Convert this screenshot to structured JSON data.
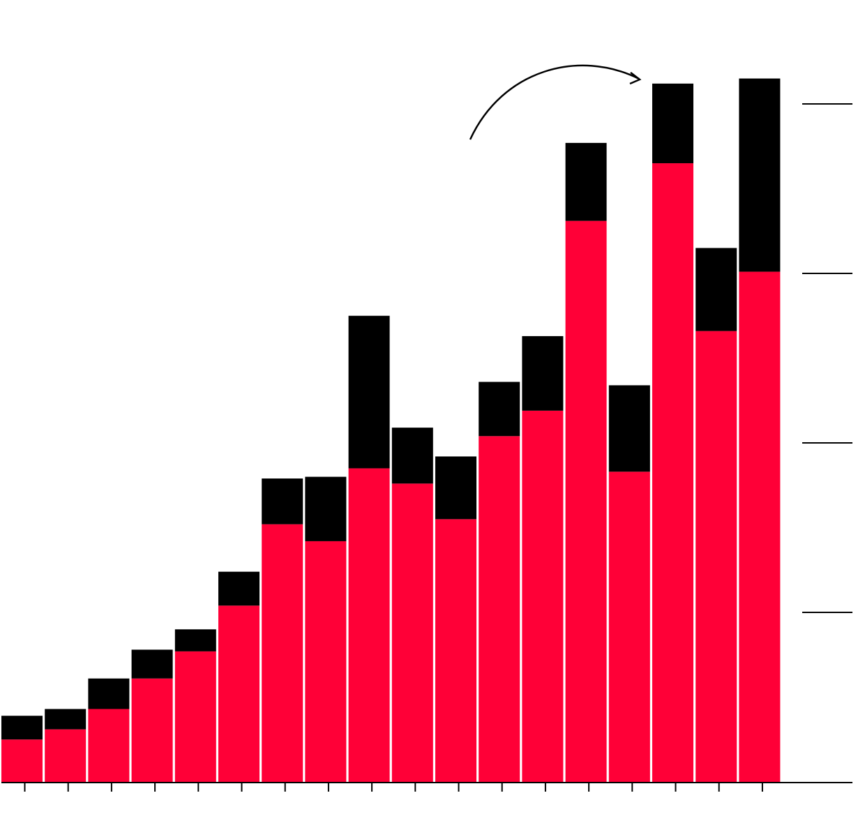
{
  "colors": {
    "background": "#ffffff",
    "lower_series": "#ff0037",
    "upper_series": "#000000",
    "axis": "#000000"
  },
  "chart_data": {
    "type": "bar",
    "stacked": true,
    "title": "",
    "xlabel": "",
    "ylabel": "",
    "ylim": [
      0,
      4.15
    ],
    "y_gridlines": [
      1,
      2,
      3,
      4
    ],
    "y_gridline_style": "short-dashes-right",
    "x_tick_count": 18,
    "annotation": "curved-arrow-pointing-to-second-tallest-bar",
    "series": [
      {
        "color": "#ff0037",
        "values": [
          0.25,
          0.31,
          0.43,
          0.61,
          0.77,
          1.04,
          1.52,
          1.42,
          1.85,
          1.76,
          1.55,
          2.04,
          2.19,
          3.31,
          1.83,
          3.65,
          2.66,
          3.01
        ]
      },
      {
        "color": "#000000",
        "values": [
          0.14,
          0.12,
          0.18,
          0.17,
          0.13,
          0.2,
          0.27,
          0.38,
          0.9,
          0.33,
          0.37,
          0.32,
          0.44,
          0.46,
          0.51,
          0.47,
          0.49,
          1.14
        ]
      }
    ]
  }
}
